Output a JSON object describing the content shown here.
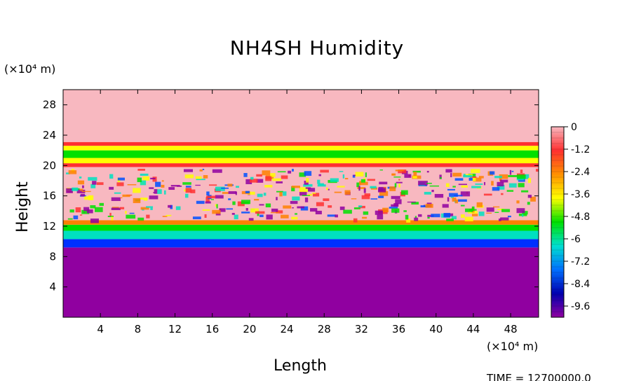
{
  "chart_data": {
    "type": "heatmap",
    "title": "NH4SH Humidity",
    "xlabel": "Length",
    "ylabel": "Height",
    "x_unit": "(×10⁴ m)",
    "y_unit": "(×10⁴ m)",
    "xlim": [
      0,
      51
    ],
    "ylim": [
      0,
      30
    ],
    "x_ticks": [
      4,
      8,
      12,
      16,
      20,
      24,
      28,
      32,
      36,
      40,
      44,
      48
    ],
    "y_ticks": [
      4,
      8,
      12,
      16,
      20,
      24,
      28
    ],
    "colorbar": {
      "range": [
        -10.2,
        0
      ],
      "tick_labels": [
        "0",
        "-1.2",
        "-2.4",
        "-3.6",
        "-4.8",
        "-6",
        "-7.2",
        "-8.4",
        "-9.6"
      ],
      "colors": [
        "#f8b8c0",
        "#ff3030",
        "#ff9000",
        "#ffff00",
        "#00e000",
        "#00e0d0",
        "#0070ff",
        "#0000b0",
        "#9000a0"
      ]
    },
    "bands": [
      {
        "from": 0,
        "to": 9.2,
        "color": "#9000a0"
      },
      {
        "from": 9.2,
        "to": 10.3,
        "color": "#0030ff"
      },
      {
        "from": 10.3,
        "to": 11.4,
        "color": "#00e0c0"
      },
      {
        "from": 11.4,
        "to": 12.2,
        "color": "#00e000"
      },
      {
        "from": 12.2,
        "to": 12.8,
        "color": "#ff8000"
      },
      {
        "from": 12.8,
        "to": 19.8,
        "color": "#f8b8c0"
      },
      {
        "from": 19.8,
        "to": 20.3,
        "color": "#ff3030"
      },
      {
        "from": 20.3,
        "to": 21.0,
        "color": "#ffff00"
      },
      {
        "from": 21.0,
        "to": 22.0,
        "color": "#00e000"
      },
      {
        "from": 22.0,
        "to": 22.6,
        "color": "#ffff00"
      },
      {
        "from": 22.6,
        "to": 23.1,
        "color": "#ff3030"
      },
      {
        "from": 23.1,
        "to": 30,
        "color": "#f8b8c0"
      }
    ]
  },
  "footer": {
    "time_label": "TIME = 12700000.0"
  }
}
